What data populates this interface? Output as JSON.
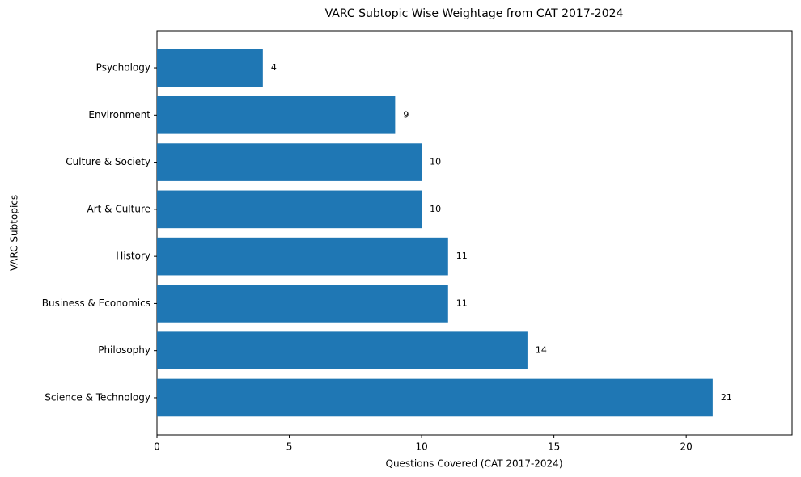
{
  "chart_data": {
    "type": "bar",
    "orientation": "horizontal",
    "title": "VARC Subtopic Wise Weightage from CAT 2017-2024",
    "x_label": "Questions Covered (CAT 2017-2024)",
    "y_label": "VARC Subtopics",
    "categories": [
      "Science & Technology",
      "Philosophy",
      "Business & Economics",
      "History",
      "Art & Culture",
      "Culture & Society",
      "Environment",
      "Psychology"
    ],
    "values": [
      21,
      14,
      11,
      11,
      10,
      10,
      9,
      4
    ],
    "color": "#1f77b4",
    "xlim": [
      0,
      24
    ],
    "xticks": [
      0,
      5,
      10,
      15,
      20
    ]
  }
}
